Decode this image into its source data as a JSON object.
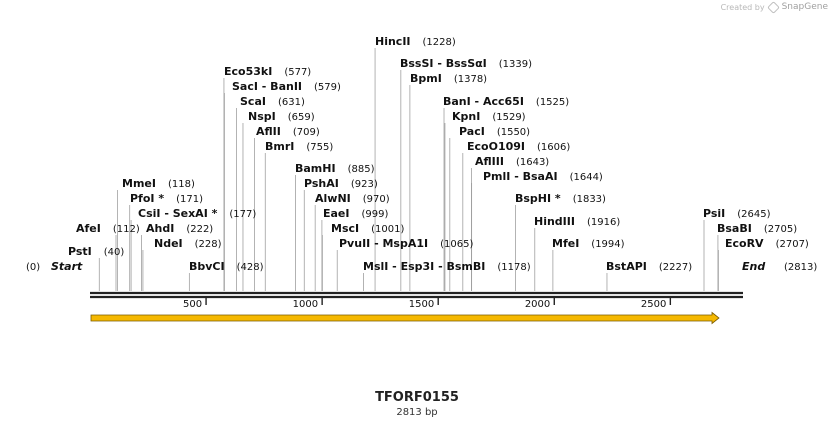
{
  "credit": {
    "prefix": "Created by",
    "brand": "SnapGene"
  },
  "map": {
    "total_bp": 2813,
    "plasmid_name": "TFORF0155",
    "size_label": "2813 bp",
    "ticks": [
      "500",
      "1000",
      "1500",
      "2000",
      "2500"
    ],
    "ends": [
      {
        "name": "Start",
        "pos": "(0)"
      },
      {
        "name": "End",
        "pos": "(2813)"
      }
    ],
    "sites": [
      {
        "label": "HincII",
        "pos": "(1228)"
      },
      {
        "label": "BssSI  -  BssSαI",
        "pos": "(1339)"
      },
      {
        "label": "BpmI",
        "pos": "(1378)"
      },
      {
        "label": "BanI  -  Acc65I",
        "pos": "(1525)"
      },
      {
        "label": "KpnI",
        "pos": "(1529)"
      },
      {
        "label": "PacI",
        "pos": "(1550)"
      },
      {
        "label": "EcoO109I",
        "pos": "(1606)"
      },
      {
        "label": "AflIII",
        "pos": "(1643)"
      },
      {
        "label": "PmlI  -  BsaAI",
        "pos": "(1644)"
      },
      {
        "label": "Eco53kI",
        "pos": "(577)"
      },
      {
        "label": "SacI  -  BanII",
        "pos": "(579)"
      },
      {
        "label": "ScaI",
        "pos": "(631)"
      },
      {
        "label": "NspI",
        "pos": "(659)"
      },
      {
        "label": "AflII",
        "pos": "(709)"
      },
      {
        "label": "BmrI",
        "pos": "(755)"
      },
      {
        "label": "BamHI",
        "pos": "(885)"
      },
      {
        "label": "PshAI",
        "pos": "(923)"
      },
      {
        "label": "AlwNI",
        "pos": "(970)"
      },
      {
        "label": "EaeI",
        "pos": "(999)"
      },
      {
        "label": "MscI",
        "pos": "(1001)"
      },
      {
        "label": "PvuII  -  MspA1I",
        "pos": "(1065)"
      },
      {
        "label": "MmeI",
        "pos": "(118)"
      },
      {
        "label": "PfoI *",
        "pos": "(171)"
      },
      {
        "label": "CsiI  -  SexAI *",
        "pos": "(177)"
      },
      {
        "label": "AhdI",
        "pos": "(222)"
      },
      {
        "label": "NdeI",
        "pos": "(228)"
      },
      {
        "label": "AfeI",
        "pos": "(112)"
      },
      {
        "label": "PstI",
        "pos": "(40)"
      },
      {
        "label": "BbvCI",
        "pos": "(428)"
      },
      {
        "label": "MslI  -  Esp3I  -  BsmBI",
        "pos": "(1178)"
      },
      {
        "label": "BspHI *",
        "pos": "(1833)"
      },
      {
        "label": "HindIII",
        "pos": "(1916)"
      },
      {
        "label": "MfeI",
        "pos": "(1994)"
      },
      {
        "label": "BstAPI",
        "pos": "(2227)"
      },
      {
        "label": "PsiI",
        "pos": "(2645)"
      },
      {
        "label": "BsaBI",
        "pos": "(2705)"
      },
      {
        "label": "EcoRV",
        "pos": "(2707)"
      }
    ]
  },
  "colors": {
    "backbone": "#222222",
    "leader": "#a0a0a0",
    "feature_fill": "#f5b800",
    "feature_stroke": "#7a5b00",
    "text": "#111111"
  }
}
